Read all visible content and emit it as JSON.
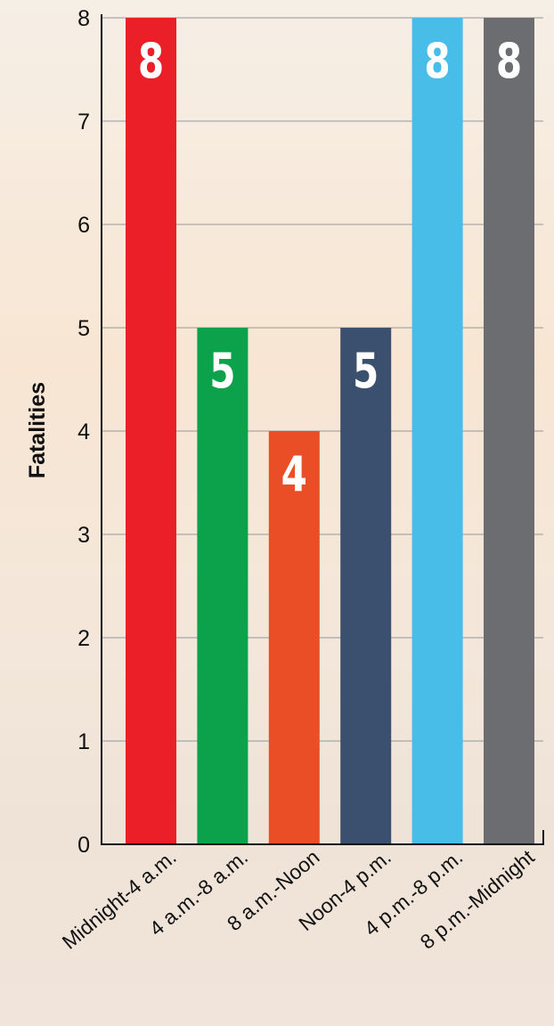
{
  "chart_data": {
    "type": "bar",
    "categories": [
      "Midnight-4 a.m.",
      "4 a.m.-8 a.m.",
      "8 a.m.-Noon",
      "Noon-4 p.m.",
      "4 p.m.-8 p.m.",
      "8 p.m.-Midnight"
    ],
    "values": [
      8,
      5,
      4,
      5,
      8,
      8
    ],
    "data_labels": [
      "8",
      "5",
      "4",
      "5",
      "8",
      "8"
    ],
    "colors": [
      "#ea1f27",
      "#0ca24c",
      "#e94e26",
      "#3b4f6f",
      "#47bde8",
      "#6c6d70"
    ],
    "title": "",
    "xlabel": "",
    "ylabel": "Fatalities",
    "ylim": [
      0,
      8
    ],
    "yticks": [
      0,
      1,
      2,
      3,
      4,
      5,
      6,
      7,
      8
    ],
    "grid": true,
    "legend": false
  }
}
